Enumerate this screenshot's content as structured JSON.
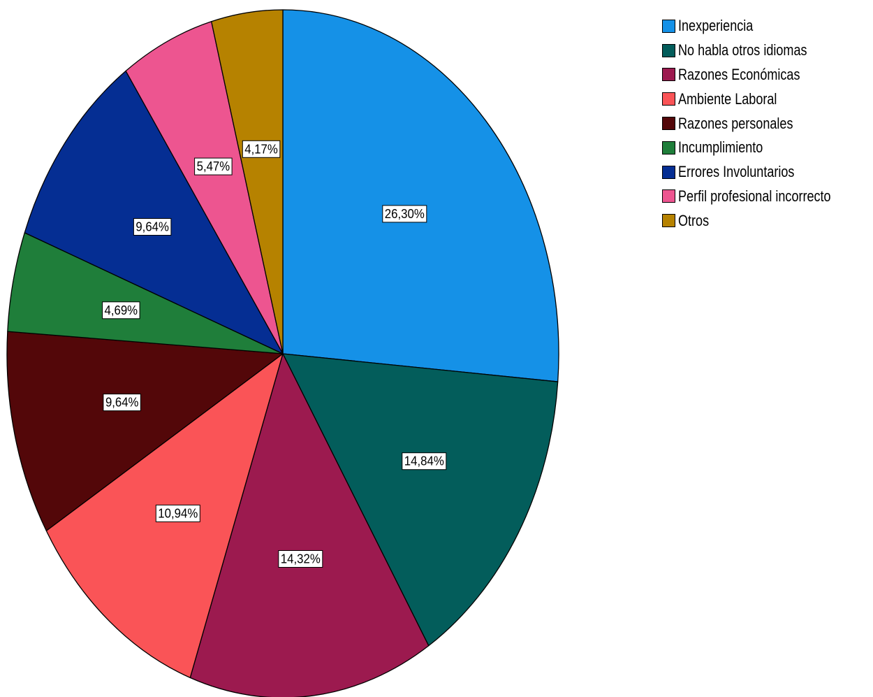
{
  "chart_data": {
    "type": "pie",
    "title": "",
    "categories": [
      "Inexperiencia",
      "No habla otros idiomas",
      "Razones Económicas",
      "Ambiente Laboral",
      "Razones personales",
      "Incumplimiento",
      "Errores Involuntarios",
      "Perfil profesional incorrecto",
      "Otros"
    ],
    "values": [
      26.3,
      14.84,
      14.32,
      10.94,
      9.64,
      4.69,
      9.64,
      5.47,
      4.17
    ],
    "data_labels": [
      "26,30%",
      "14,84%",
      "14,32%",
      "10,94%",
      "9,64%",
      "4,69%",
      "9,64%",
      "5,47%",
      "4,17%"
    ],
    "colors": [
      "#1591e7",
      "#035d5b",
      "#9c1a4f",
      "#fa5457",
      "#530709",
      "#1f7e3a",
      "#052e93",
      "#ed5590",
      "#b68200"
    ],
    "start_angle": "12 o'clock",
    "direction": "clockwise",
    "legend_position": "top-right"
  }
}
